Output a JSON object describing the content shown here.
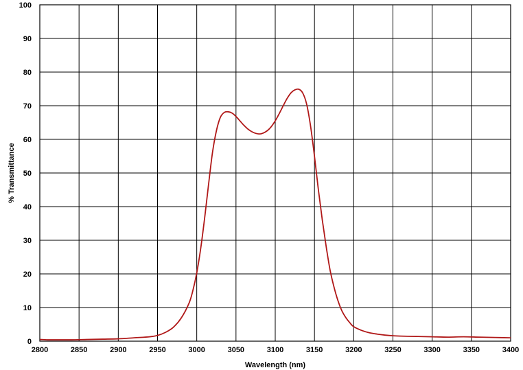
{
  "chart_data": {
    "type": "line",
    "title": "",
    "xlabel": "Wavelength (nm)",
    "ylabel": "% Transmittance",
    "xlim": [
      2800,
      3400
    ],
    "ylim": [
      0,
      100
    ],
    "x_ticks": [
      2800,
      2850,
      2900,
      2950,
      3000,
      3050,
      3100,
      3150,
      3200,
      3250,
      3300,
      3350,
      3400
    ],
    "y_ticks": [
      0,
      10,
      20,
      30,
      40,
      50,
      60,
      70,
      80,
      90,
      100
    ],
    "x_tick_labels": [
      "2800",
      "2850",
      "2900",
      "2950",
      "3000",
      "3050",
      "3100",
      "3150",
      "3200",
      "3250",
      "3300",
      "3350",
      "3400"
    ],
    "y_tick_labels": [
      "0",
      "10",
      "20",
      "30",
      "40",
      "50",
      "60",
      "70",
      "80",
      "90",
      "100"
    ],
    "grid": true,
    "legend": "none",
    "line_color": "#b01818",
    "series": [
      {
        "x": [
          2800,
          2810,
          2820,
          2840,
          2860,
          2880,
          2900,
          2920,
          2940,
          2950,
          2960,
          2970,
          2980,
          2990,
          2995,
          3000,
          3005,
          3010,
          3015,
          3020,
          3025,
          3030,
          3035,
          3040,
          3045,
          3050,
          3055,
          3060,
          3065,
          3070,
          3075,
          3080,
          3085,
          3090,
          3095,
          3100,
          3105,
          3110,
          3115,
          3120,
          3125,
          3130,
          3135,
          3140,
          3145,
          3150,
          3155,
          3160,
          3165,
          3170,
          3175,
          3180,
          3185,
          3190,
          3195,
          3200,
          3210,
          3220,
          3230,
          3240,
          3250,
          3260,
          3280,
          3300,
          3320,
          3340,
          3360,
          3380,
          3400
        ],
        "y": [
          0.5,
          0.4,
          0.4,
          0.4,
          0.5,
          0.6,
          0.7,
          1.0,
          1.3,
          1.7,
          2.6,
          4.1,
          6.8,
          11.2,
          15.0,
          20.3,
          27.5,
          36.5,
          46.5,
          56.0,
          62.5,
          66.5,
          68.0,
          68.2,
          67.8,
          66.8,
          65.5,
          64.2,
          63.1,
          62.3,
          61.8,
          61.6,
          61.9,
          62.6,
          63.8,
          65.5,
          67.6,
          69.9,
          72.1,
          73.8,
          74.7,
          74.9,
          73.8,
          70.5,
          64.0,
          55.0,
          45.0,
          36.0,
          28.0,
          21.0,
          16.0,
          12.0,
          9.0,
          7.0,
          5.5,
          4.3,
          3.2,
          2.5,
          2.1,
          1.8,
          1.6,
          1.5,
          1.4,
          1.3,
          1.2,
          1.3,
          1.2,
          1.1,
          1.0
        ]
      }
    ]
  }
}
